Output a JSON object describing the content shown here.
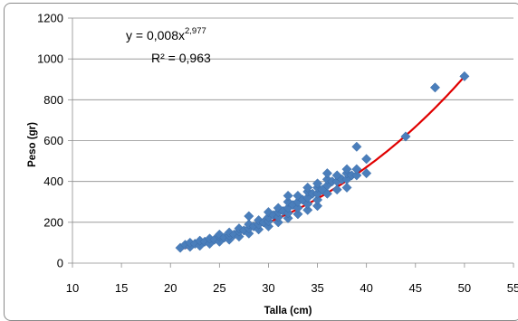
{
  "chart_data": {
    "type": "scatter",
    "title": "",
    "xlabel": "Talla (cm)",
    "ylabel": "Peso (gr)",
    "xlim": [
      10,
      55
    ],
    "ylim": [
      0,
      1200
    ],
    "x_ticks": [
      "10",
      "15",
      "20",
      "25",
      "30",
      "35",
      "40",
      "45",
      "50",
      "55"
    ],
    "y_ticks": [
      "0",
      "200",
      "400",
      "600",
      "800",
      "1000",
      "1200"
    ],
    "grid": "horizontal",
    "legend": "none",
    "marker_color": "#4a7ebb",
    "trendline_color": "#e00000",
    "trendline": {
      "type": "power",
      "coefficient": 0.008,
      "exponent": 2.977,
      "x_range": [
        21,
        50
      ],
      "equation_prefix": "y = 0,008x",
      "equation_exponent": "2,977",
      "r2_label": "R² = 0,963"
    },
    "points": [
      [
        21,
        75
      ],
      [
        21.5,
        90
      ],
      [
        22,
        80
      ],
      [
        22,
        100
      ],
      [
        22.5,
        95
      ],
      [
        23,
        85
      ],
      [
        23,
        110
      ],
      [
        23.5,
        105
      ],
      [
        24,
        95
      ],
      [
        24,
        120
      ],
      [
        24.5,
        115
      ],
      [
        25,
        105
      ],
      [
        25,
        130
      ],
      [
        25,
        140
      ],
      [
        25.5,
        125
      ],
      [
        26,
        115
      ],
      [
        26,
        135
      ],
      [
        26,
        150
      ],
      [
        26.5,
        140
      ],
      [
        27,
        130
      ],
      [
        27,
        155
      ],
      [
        27,
        170
      ],
      [
        27.5,
        160
      ],
      [
        28,
        145
      ],
      [
        28,
        170
      ],
      [
        28,
        190
      ],
      [
        28,
        230
      ],
      [
        28.5,
        180
      ],
      [
        29,
        165
      ],
      [
        29,
        190
      ],
      [
        29,
        210
      ],
      [
        29.5,
        200
      ],
      [
        30,
        180
      ],
      [
        30,
        205
      ],
      [
        30,
        225
      ],
      [
        30,
        250
      ],
      [
        30.5,
        235
      ],
      [
        31,
        200
      ],
      [
        31,
        225
      ],
      [
        31,
        250
      ],
      [
        31,
        270
      ],
      [
        31.5,
        255
      ],
      [
        32,
        220
      ],
      [
        32,
        245
      ],
      [
        32,
        270
      ],
      [
        32,
        300
      ],
      [
        32,
        330
      ],
      [
        32.5,
        285
      ],
      [
        33,
        240
      ],
      [
        33,
        270
      ],
      [
        33,
        300
      ],
      [
        33,
        330
      ],
      [
        33.5,
        310
      ],
      [
        34,
        260
      ],
      [
        34,
        290
      ],
      [
        34,
        320
      ],
      [
        34,
        350
      ],
      [
        34,
        370
      ],
      [
        34.5,
        340
      ],
      [
        35,
        280
      ],
      [
        35,
        310
      ],
      [
        35,
        340
      ],
      [
        35,
        370
      ],
      [
        35,
        390
      ],
      [
        35.5,
        360
      ],
      [
        36,
        340
      ],
      [
        36,
        380
      ],
      [
        36,
        410
      ],
      [
        36,
        440
      ],
      [
        36.5,
        400
      ],
      [
        37,
        360
      ],
      [
        37,
        400
      ],
      [
        37,
        430
      ],
      [
        37.5,
        410
      ],
      [
        38,
        370
      ],
      [
        38,
        410
      ],
      [
        38,
        440
      ],
      [
        38,
        460
      ],
      [
        38.5,
        430
      ],
      [
        39,
        430
      ],
      [
        39,
        460
      ],
      [
        39,
        570
      ],
      [
        40,
        440
      ],
      [
        40,
        510
      ],
      [
        44,
        620
      ],
      [
        47,
        860
      ],
      [
        50,
        915
      ]
    ]
  }
}
